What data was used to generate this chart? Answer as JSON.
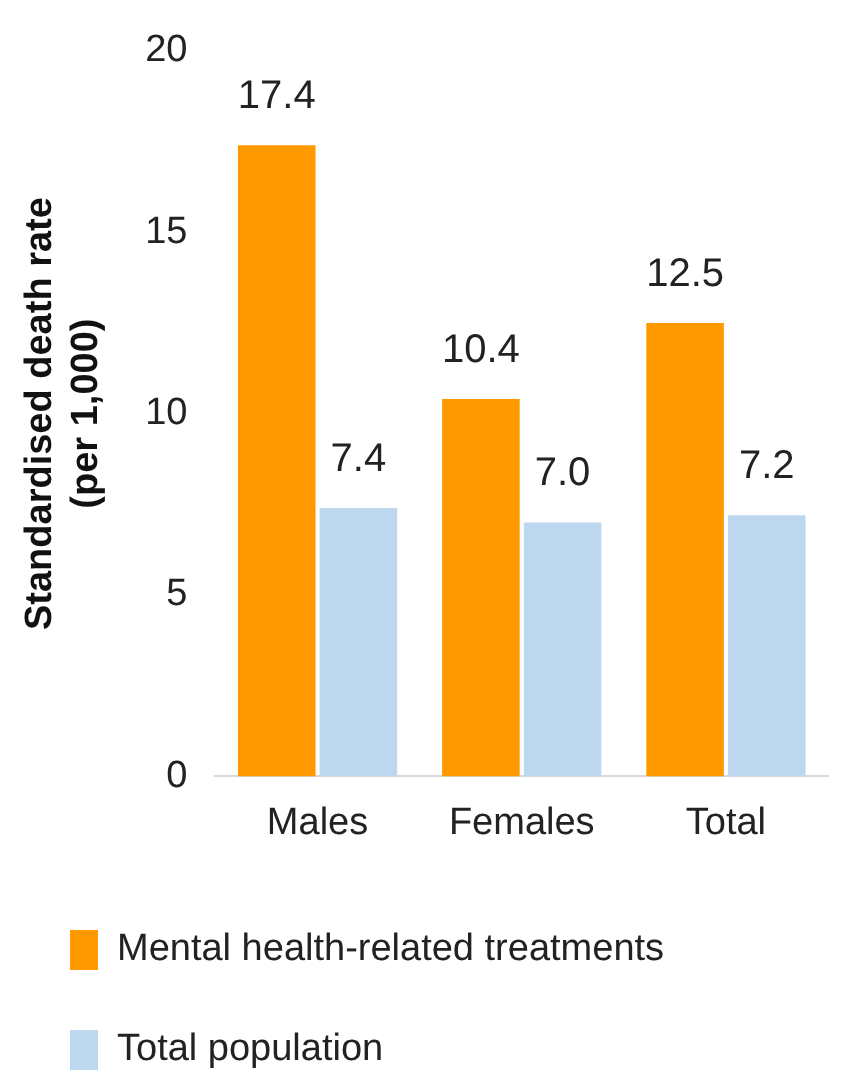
{
  "chart_data": {
    "type": "bar",
    "ylabel": "Standardised death rate (per 1,000)",
    "categories": [
      "Males",
      "Females",
      "Total"
    ],
    "series": [
      {
        "name": "Mental health-related treatments",
        "color": "#ff9900",
        "values": [
          17.4,
          10.4,
          12.5
        ],
        "value_labels": [
          "17.4",
          "10.4",
          "12.5"
        ]
      },
      {
        "name": "Total population",
        "color": "#bdd7ee",
        "values": [
          7.4,
          7.0,
          7.2
        ],
        "value_labels": [
          "7.4",
          "7.0",
          "7.2"
        ]
      }
    ],
    "ylim": [
      0,
      20
    ],
    "yticks": [
      0,
      5,
      10,
      15,
      20
    ],
    "grid": false,
    "legend": "bottom"
  }
}
